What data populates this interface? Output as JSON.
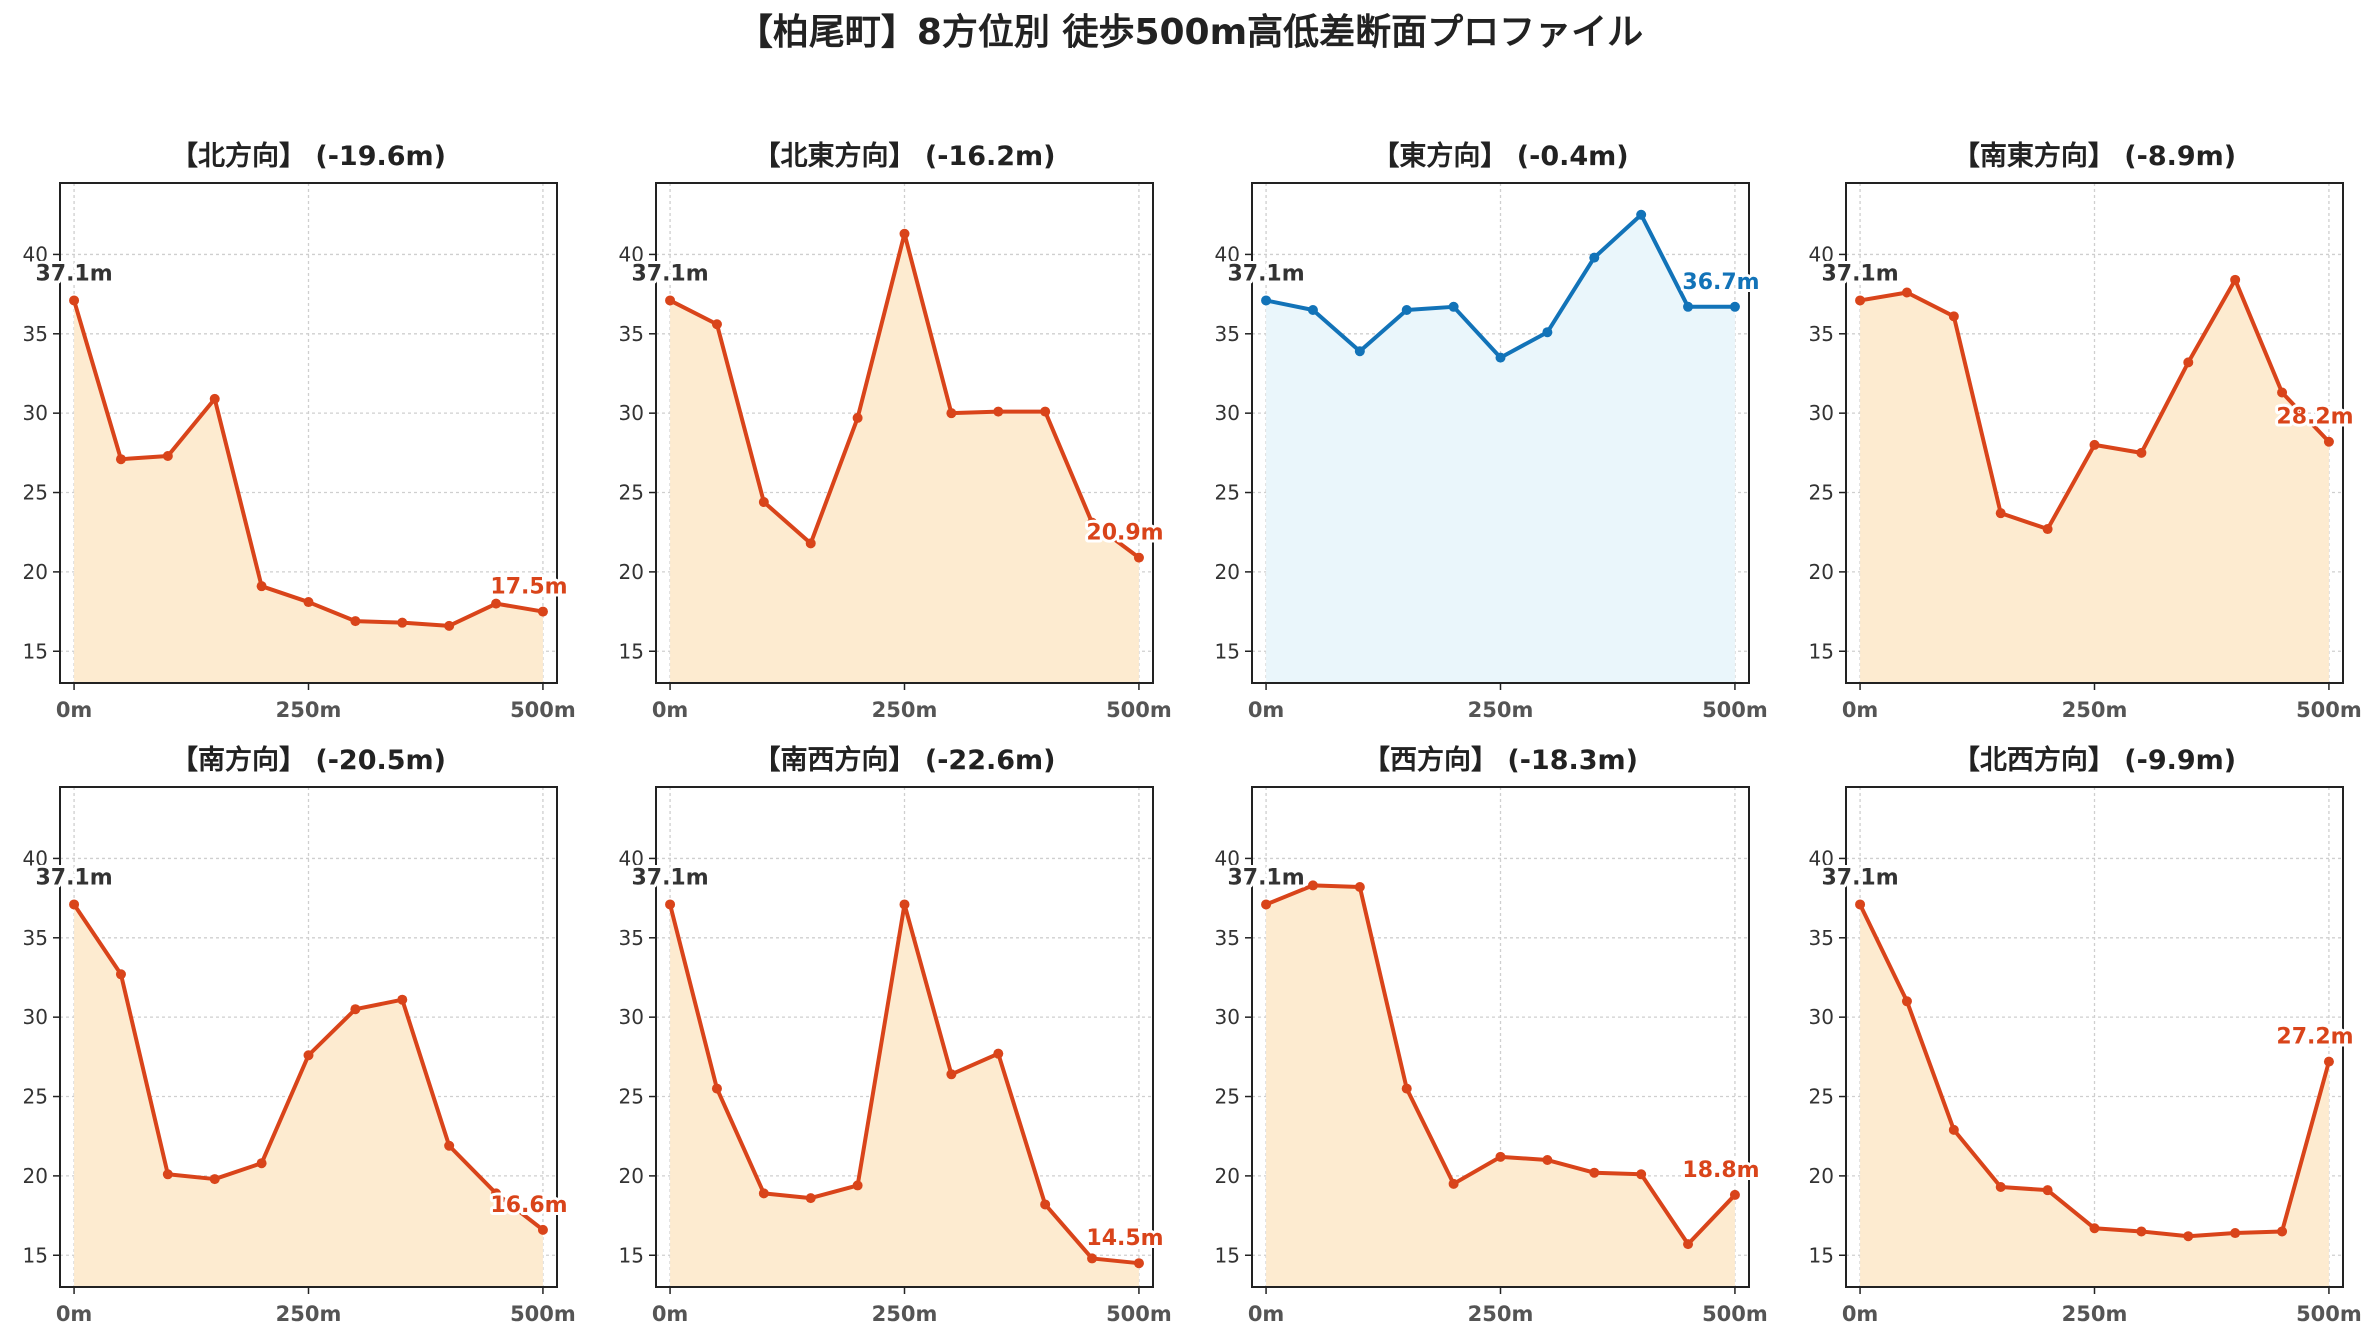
{
  "figure": {
    "title": "【柏尾町】8方位別 徒歩500m高低差断面プロファイル"
  },
  "colors": {
    "down_line": "#d9441a",
    "down_fill": "#fdebd0",
    "flat_line": "#1273b8",
    "flat_fill": "#eaf6fb",
    "start_label": "#333333",
    "axis": "#222222",
    "tick_label": "#555555",
    "grid": "#cfcfcf"
  },
  "chart_data": [
    {
      "type": "area",
      "title": "【北方向】 (-19.6m)",
      "style": "down",
      "x": [
        0,
        50,
        100,
        150,
        200,
        250,
        300,
        350,
        400,
        450,
        500
      ],
      "y": [
        37.1,
        27.1,
        27.3,
        30.9,
        19.1,
        18.1,
        16.9,
        16.8,
        16.6,
        18.0,
        17.5
      ],
      "start_label": "37.1m",
      "end_label": "17.5m",
      "xlim": [
        -15,
        515
      ],
      "ylim": [
        13,
        44.5
      ],
      "xticks": [
        0,
        250,
        500
      ],
      "xtick_labels": [
        "0m",
        "250m",
        "500m"
      ],
      "yticks": [
        15,
        20,
        25,
        30,
        35,
        40
      ],
      "ytick_labels": [
        "15",
        "20",
        "25",
        "30",
        "35",
        "40"
      ],
      "grid": true
    },
    {
      "type": "area",
      "title": "【北東方向】 (-16.2m)",
      "style": "down",
      "x": [
        0,
        50,
        100,
        150,
        200,
        250,
        300,
        350,
        400,
        450,
        500
      ],
      "y": [
        37.1,
        35.6,
        24.4,
        21.8,
        29.7,
        41.3,
        30.0,
        30.1,
        30.1,
        23.1,
        20.9
      ],
      "start_label": "37.1m",
      "end_label": "20.9m",
      "xlim": [
        -15,
        515
      ],
      "ylim": [
        13,
        44.5
      ],
      "xticks": [
        0,
        250,
        500
      ],
      "xtick_labels": [
        "0m",
        "250m",
        "500m"
      ],
      "yticks": [
        15,
        20,
        25,
        30,
        35,
        40
      ],
      "ytick_labels": [
        "15",
        "20",
        "25",
        "30",
        "35",
        "40"
      ],
      "grid": true
    },
    {
      "type": "area",
      "title": "【東方向】 (-0.4m)",
      "style": "flat",
      "x": [
        0,
        50,
        100,
        150,
        200,
        250,
        300,
        350,
        400,
        450,
        500
      ],
      "y": [
        37.1,
        36.5,
        33.9,
        36.5,
        36.7,
        33.5,
        35.1,
        39.8,
        42.5,
        36.7,
        36.7
      ],
      "start_label": "37.1m",
      "end_label": "36.7m",
      "xlim": [
        -15,
        515
      ],
      "ylim": [
        13,
        44.5
      ],
      "xticks": [
        0,
        250,
        500
      ],
      "xtick_labels": [
        "0m",
        "250m",
        "500m"
      ],
      "yticks": [
        15,
        20,
        25,
        30,
        35,
        40
      ],
      "ytick_labels": [
        "15",
        "20",
        "25",
        "30",
        "35",
        "40"
      ],
      "grid": true
    },
    {
      "type": "area",
      "title": "【南東方向】 (-8.9m)",
      "style": "down",
      "x": [
        0,
        50,
        100,
        150,
        200,
        250,
        300,
        350,
        400,
        450,
        500
      ],
      "y": [
        37.1,
        37.6,
        36.1,
        23.7,
        22.7,
        28.0,
        27.5,
        33.2,
        38.4,
        31.3,
        28.2
      ],
      "start_label": "37.1m",
      "end_label": "28.2m",
      "xlim": [
        -15,
        515
      ],
      "ylim": [
        13,
        44.5
      ],
      "xticks": [
        0,
        250,
        500
      ],
      "xtick_labels": [
        "0m",
        "250m",
        "500m"
      ],
      "yticks": [
        15,
        20,
        25,
        30,
        35,
        40
      ],
      "ytick_labels": [
        "15",
        "20",
        "25",
        "30",
        "35",
        "40"
      ],
      "grid": true
    },
    {
      "type": "area",
      "title": "【南方向】 (-20.5m)",
      "style": "down",
      "x": [
        0,
        50,
        100,
        150,
        200,
        250,
        300,
        350,
        400,
        450,
        500
      ],
      "y": [
        37.1,
        32.7,
        20.1,
        19.8,
        20.8,
        27.6,
        30.5,
        31.1,
        21.9,
        18.9,
        16.6
      ],
      "start_label": "37.1m",
      "end_label": "16.6m",
      "xlim": [
        -15,
        515
      ],
      "ylim": [
        13,
        44.5
      ],
      "xticks": [
        0,
        250,
        500
      ],
      "xtick_labels": [
        "0m",
        "250m",
        "500m"
      ],
      "yticks": [
        15,
        20,
        25,
        30,
        35,
        40
      ],
      "ytick_labels": [
        "15",
        "20",
        "25",
        "30",
        "35",
        "40"
      ],
      "grid": true
    },
    {
      "type": "area",
      "title": "【南西方向】 (-22.6m)",
      "style": "down",
      "x": [
        0,
        50,
        100,
        150,
        200,
        250,
        300,
        350,
        400,
        450,
        500
      ],
      "y": [
        37.1,
        25.5,
        18.9,
        18.6,
        19.4,
        37.1,
        26.4,
        27.7,
        18.2,
        14.8,
        14.5
      ],
      "start_label": "37.1m",
      "end_label": "14.5m",
      "xlim": [
        -15,
        515
      ],
      "ylim": [
        13,
        44.5
      ],
      "xticks": [
        0,
        250,
        500
      ],
      "xtick_labels": [
        "0m",
        "250m",
        "500m"
      ],
      "yticks": [
        15,
        20,
        25,
        30,
        35,
        40
      ],
      "ytick_labels": [
        "15",
        "20",
        "25",
        "30",
        "35",
        "40"
      ],
      "grid": true
    },
    {
      "type": "area",
      "title": "【西方向】 (-18.3m)",
      "style": "down",
      "x": [
        0,
        50,
        100,
        150,
        200,
        250,
        300,
        350,
        400,
        450,
        500
      ],
      "y": [
        37.1,
        38.3,
        38.2,
        25.5,
        19.5,
        21.2,
        21.0,
        20.2,
        20.1,
        15.7,
        18.8
      ],
      "start_label": "37.1m",
      "end_label": "18.8m",
      "xlim": [
        -15,
        515
      ],
      "ylim": [
        13,
        44.5
      ],
      "xticks": [
        0,
        250,
        500
      ],
      "xtick_labels": [
        "0m",
        "250m",
        "500m"
      ],
      "yticks": [
        15,
        20,
        25,
        30,
        35,
        40
      ],
      "ytick_labels": [
        "15",
        "20",
        "25",
        "30",
        "35",
        "40"
      ],
      "grid": true
    },
    {
      "type": "area",
      "title": "【北西方向】 (-9.9m)",
      "style": "down",
      "x": [
        0,
        50,
        100,
        150,
        200,
        250,
        300,
        350,
        400,
        450,
        500
      ],
      "y": [
        37.1,
        31.0,
        22.9,
        19.3,
        19.1,
        16.7,
        16.5,
        16.2,
        16.4,
        16.5,
        27.2
      ],
      "start_label": "37.1m",
      "end_label": "27.2m",
      "xlim": [
        -15,
        515
      ],
      "ylim": [
        13,
        44.5
      ],
      "xticks": [
        0,
        250,
        500
      ],
      "xtick_labels": [
        "0m",
        "250m",
        "500m"
      ],
      "yticks": [
        15,
        20,
        25,
        30,
        35,
        40
      ],
      "ytick_labels": [
        "15",
        "20",
        "25",
        "30",
        "35",
        "40"
      ],
      "grid": true
    }
  ]
}
